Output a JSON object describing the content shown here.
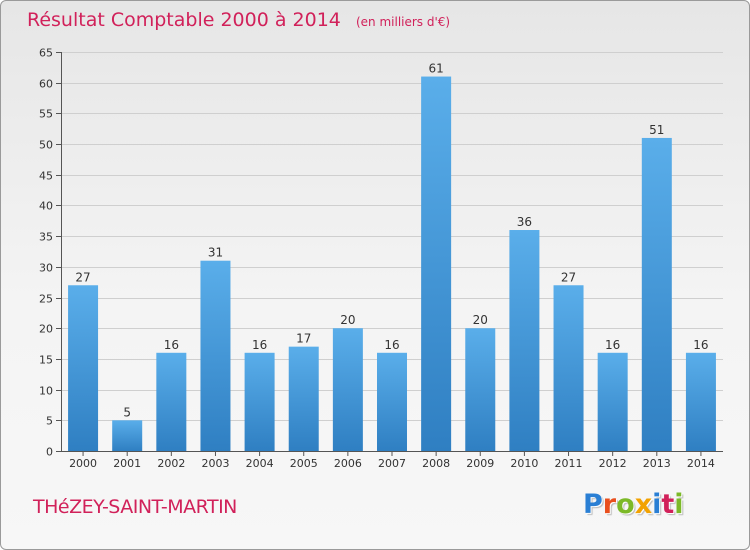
{
  "header": {
    "title": "Résultat Comptable 2000 à 2014",
    "unit": "(en milliers d'€)"
  },
  "commune": "THéZEY-SAINT-MARTIN",
  "logo": {
    "text": "Proxiti",
    "letters": [
      {
        "ch": "P",
        "color": "#2a7fd4"
      },
      {
        "ch": "r",
        "color": "#e94f1d"
      },
      {
        "ch": "o",
        "color": "#7cb928"
      },
      {
        "ch": "x",
        "color": "#f2a200"
      },
      {
        "ch": "i",
        "color": "#2a7fd4"
      },
      {
        "ch": "t",
        "color": "#d1215a"
      },
      {
        "ch": "i",
        "color": "#7cb928"
      }
    ]
  },
  "colors": {
    "title": "#d1215a",
    "bar_top": "#5aaeea",
    "bar_bottom": "#2f7fc2",
    "grid": "#cfcfcf",
    "axis": "#555555",
    "text": "#333333"
  },
  "chart_data": {
    "type": "bar",
    "title": "Résultat Comptable 2000 à 2014",
    "xlabel": "",
    "ylabel": "",
    "ylim": [
      0,
      65
    ],
    "yticks": [
      "0",
      "5",
      "10",
      "15",
      "20",
      "25",
      "30",
      "35",
      "40",
      "45",
      "50",
      "55",
      "60",
      "65"
    ],
    "categories": [
      "2000",
      "2001",
      "2002",
      "2003",
      "2004",
      "2005",
      "2006",
      "2007",
      "2008",
      "2009",
      "2010",
      "2011",
      "2012",
      "2013",
      "2014"
    ],
    "values": [
      27,
      5,
      16,
      31,
      16,
      17,
      20,
      16,
      61,
      20,
      36,
      27,
      16,
      51,
      16
    ],
    "grid": true,
    "legend": "none"
  }
}
